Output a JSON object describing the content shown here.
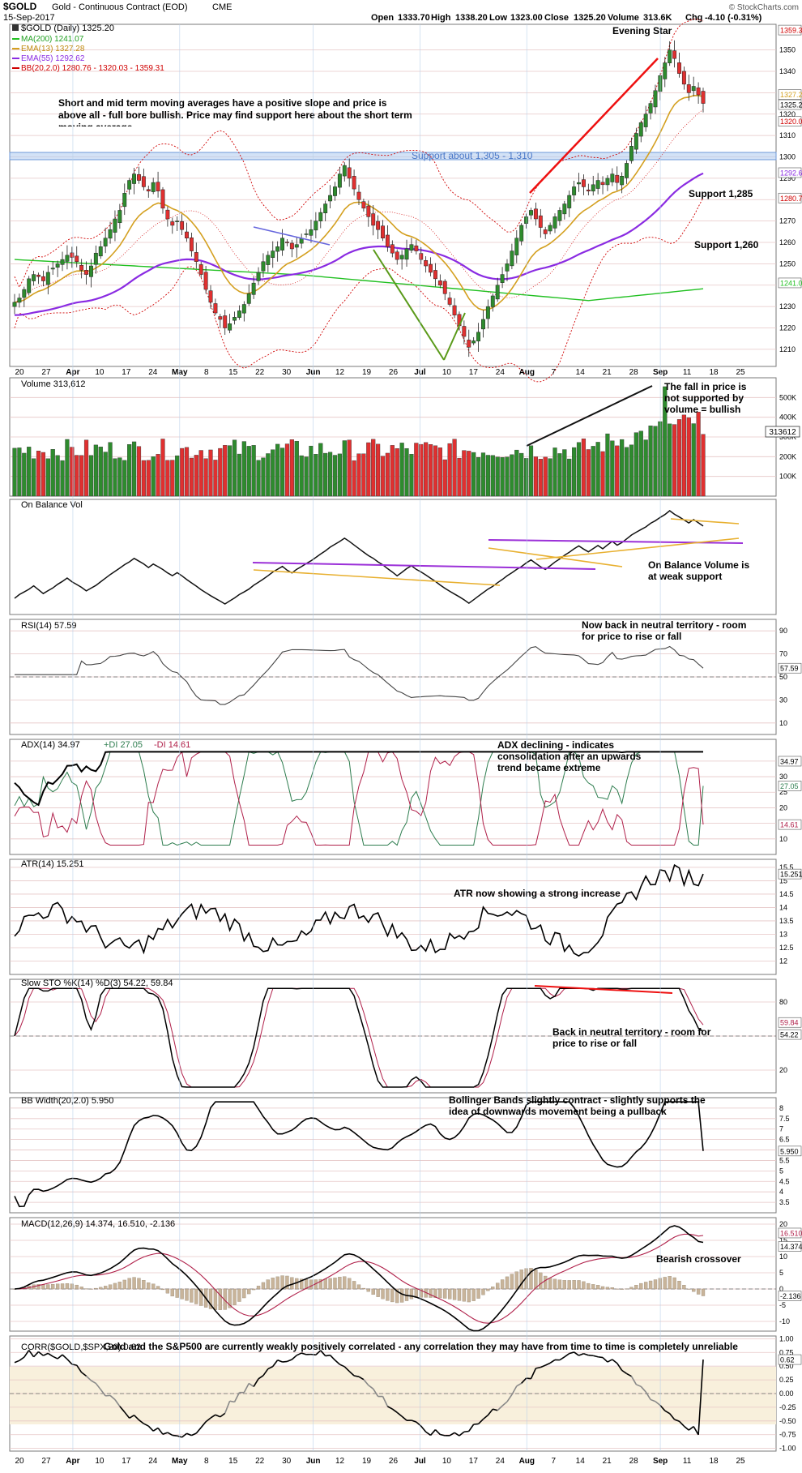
{
  "header": {
    "symbol": "$GOLD",
    "name": "Gold - Continuous Contract (EOD)",
    "exchange": "CME",
    "date": "15-Sep-2017",
    "open_label": "Open",
    "open": "1333.70",
    "high_label": "High",
    "high": "1338.20",
    "low_label": "Low",
    "low": "1323.00",
    "close_label": "Close",
    "close": "1325.20",
    "volume_label": "Volume",
    "volume": "313.6K",
    "chg_label": "Chg",
    "chg": "-4.10 (-0.31%)",
    "watermark": "© StockCharts.com"
  },
  "colors": {
    "up": "#2e8b2e",
    "down": "#e03030",
    "ema13": "#d4a020",
    "ema55": "#8a2be2",
    "ma200": "#22c022",
    "bb": "#d00000",
    "grid": "#e3b8b8"
  },
  "x_axis": {
    "labels": [
      "20",
      "27",
      "Apr",
      "10",
      "17",
      "24",
      "May",
      "8",
      "15",
      "22",
      "30",
      "Jun",
      "12",
      "19",
      "26",
      "Jul",
      "10",
      "17",
      "24",
      "Aug",
      "7",
      "14",
      "21",
      "28",
      "Sep",
      "11",
      "18",
      "25"
    ]
  },
  "chart_data": [
    {
      "type": "candlestick",
      "title": "$GOLD (Daily) 1325.20",
      "ylim": [
        1202,
        1362
      ],
      "yticks": [
        1210,
        1220,
        1230,
        1240,
        1250,
        1260,
        1270,
        1280,
        1290,
        1300,
        1310,
        1320,
        1330,
        1340,
        1350
      ],
      "legend": [
        {
          "name": "MA(200) 1241.07"
        },
        {
          "name": "EMA(13) 1327.28"
        },
        {
          "name": "EMA(55) 1292.62"
        },
        {
          "name": "BB(20,2.0) 1280.76 - 1320.03 - 1359.31"
        }
      ],
      "price_tags": [
        "1359.31",
        "1327.28",
        "1325.20",
        "1320.03",
        "1292.62",
        "1280.76",
        "1241.07"
      ],
      "close": [
        1232,
        1234,
        1238,
        1243,
        1245,
        1244,
        1242,
        1246,
        1248,
        1250,
        1252,
        1254,
        1253,
        1251,
        1247,
        1245,
        1249,
        1255,
        1258,
        1262,
        1266,
        1271,
        1275,
        1283,
        1289,
        1292,
        1289,
        1286,
        1284,
        1288,
        1284,
        1276,
        1271,
        1268,
        1270,
        1266,
        1262,
        1256,
        1251,
        1245,
        1238,
        1232,
        1227,
        1224,
        1220,
        1222,
        1225,
        1228,
        1231,
        1236,
        1241,
        1246,
        1251,
        1254,
        1256,
        1258,
        1262,
        1260,
        1257,
        1259,
        1262,
        1264,
        1266,
        1270,
        1274,
        1278,
        1282,
        1286,
        1292,
        1296,
        1290,
        1285,
        1280,
        1276,
        1272,
        1268,
        1266,
        1262,
        1258,
        1255,
        1252,
        1254,
        1257,
        1259,
        1256,
        1252,
        1249,
        1246,
        1243,
        1240,
        1236,
        1231,
        1226,
        1221,
        1216,
        1211,
        1214,
        1218,
        1224,
        1230,
        1235,
        1240,
        1245,
        1250,
        1256,
        1262,
        1268,
        1272,
        1275,
        1271,
        1267,
        1264,
        1268,
        1272,
        1275,
        1278,
        1282,
        1286,
        1288,
        1286,
        1284,
        1287,
        1289,
        1287,
        1290,
        1292,
        1288,
        1291,
        1297,
        1305,
        1311,
        1316,
        1320,
        1325,
        1331,
        1338,
        1344,
        1350,
        1346,
        1339,
        1334,
        1330,
        1333,
        1329,
        1325
      ],
      "ema13_end": 1327.28,
      "ema55_end": 1292.62,
      "ma200_end": 1241.07,
      "bb_end": [
        1280.76,
        1320.03,
        1359.31
      ],
      "annotations": [
        "Evening Star",
        "Short and mid term moving averages have a positive slope and price is above all - full bore bullish. Price may find support here about the short term moving average.",
        "Support about 1,305 - 1,310",
        "Support 1,285",
        "Support 1,260"
      ]
    },
    {
      "type": "bar",
      "title": "Volume 313,612",
      "yticks": [
        100,
        200,
        300,
        400,
        500
      ],
      "ytick_labels": [
        "100K",
        "200K",
        "300K",
        "400K",
        "500K"
      ],
      "ylim": [
        0,
        600
      ],
      "tag": "313612",
      "unit": "K",
      "annotation": "The fall in price is not supported by volume = bullish"
    },
    {
      "type": "line",
      "title": "On Balance Vol",
      "annotation": "On Balance Volume is at weak support"
    },
    {
      "type": "line",
      "title": "RSI(14) 57.59",
      "ylim": [
        0,
        100
      ],
      "yticks": [
        10,
        30,
        50,
        70,
        90
      ],
      "last": "57.59",
      "annotation": "Now back in neutral territory - room for price to rise or fall"
    },
    {
      "type": "line",
      "title": "ADX(14) 34.97",
      "di_plus": "+DI 27.05",
      "di_minus": "-DI 14.61",
      "ylim": [
        5,
        42
      ],
      "yticks": [
        10,
        15,
        20,
        25,
        30,
        35
      ],
      "tags": [
        "34.97",
        "27.05",
        "14.61"
      ],
      "annotation": "ADX declining - indicates consolidation after an upwards trend became extreme"
    },
    {
      "type": "line",
      "title": "ATR(14) 15.251",
      "ylim": [
        11.5,
        15.8
      ],
      "yticks": [
        12.0,
        12.5,
        13.0,
        13.5,
        14.0,
        14.5,
        15.0,
        15.5
      ],
      "last": "15.251",
      "annotation": "ATR now showing a strong increase"
    },
    {
      "type": "line",
      "title": "Slow STO %K(14) %D(3) 54.22, 59.84",
      "ylim": [
        0,
        100
      ],
      "yticks": [
        20,
        50,
        80
      ],
      "tags": [
        "59.84",
        "54.22"
      ],
      "annotation": "Back in neutral territory - room for price to rise or fall"
    },
    {
      "type": "line",
      "title": "BB Width(20,2.0) 5.950",
      "ylim": [
        3.0,
        8.5
      ],
      "yticks": [
        3.5,
        4.0,
        4.5,
        5.0,
        5.5,
        6.0,
        6.5,
        7.0,
        7.5,
        8.0
      ],
      "last": "5.950",
      "annotation": "Bollinger Bands slightly contract - slightly supports the idea of downwards movement being a pullback"
    },
    {
      "type": "line",
      "title": "MACD(12,26,9) 14.374, 16.510, -2.136",
      "ylim": [
        -13,
        22
      ],
      "yticks": [
        -10,
        -5,
        0,
        5,
        10,
        15,
        20
      ],
      "tags": [
        "16.510",
        "14.374",
        "-2.136"
      ],
      "annotation": "Bearish crossover"
    },
    {
      "type": "line",
      "title": "CORR($GOLD,$SPX,20) 0.62",
      "ylim": [
        -1.05,
        1.05
      ],
      "yticks": [
        -1.0,
        -0.75,
        -0.5,
        -0.25,
        0.0,
        0.25,
        0.5,
        0.75,
        1.0
      ],
      "last": "0.62",
      "annotation": "Gold and the S&P500 are currently weakly positively correlated - any correlation they may have from time to time is completely unreliable"
    }
  ]
}
